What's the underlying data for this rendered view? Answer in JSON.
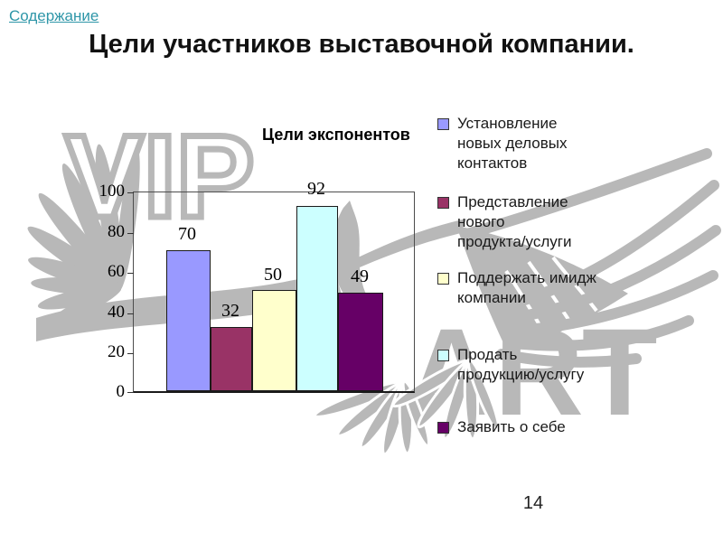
{
  "nav": {
    "contents_link": "Содержание"
  },
  "slide": {
    "title": "Цели участников выставочной компании.",
    "page_number": "14"
  },
  "watermark": {
    "vip": "VIP",
    "art": "ART",
    "color": "#b8b8b8"
  },
  "chart_data": {
    "type": "bar",
    "title": "Цели экспонентов",
    "categories": [
      "Установление новых деловых контактов",
      "Представление нового продукта/услуги",
      "Поддержать имидж компании",
      "Продать продукцию/услугу",
      "Заявить о себе"
    ],
    "values": [
      70,
      32,
      50,
      92,
      49
    ],
    "colors": [
      "#9999FF",
      "#993366",
      "#FFFFCC",
      "#CCFFFF",
      "#660066"
    ],
    "yticks": [
      "100",
      "80",
      "60",
      "40",
      "20",
      "0"
    ],
    "ylim": [
      0,
      100
    ],
    "grid": false,
    "legend_position": "right",
    "legend": [
      {
        "label": "Установление\nновых деловых\nконтактов",
        "color": "#9999FF"
      },
      {
        "label": "Представление\nнового\nпродукта/услуги",
        "color": "#993366"
      },
      {
        "label": "Поддержать имидж\nкомпании",
        "color": "#FFFFCC"
      },
      {
        "label": "Продать\nпродукцию/услугу",
        "color": "#CCFFFF"
      },
      {
        "label": "Заявить о себе",
        "color": "#660066"
      }
    ]
  }
}
